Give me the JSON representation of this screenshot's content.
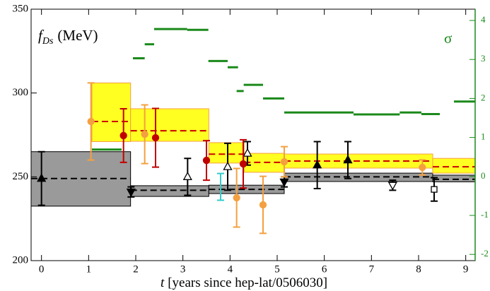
{
  "chart_data": {
    "type": "errorbar",
    "ylabel": {
      "symbol": "f",
      "subscript": "Ds",
      "unit": "(MeV)"
    },
    "y2label": "σ",
    "xlabel": {
      "symbol": "t",
      "text": "[years since hep-lat/0506030]"
    },
    "xlim": [
      -0.22,
      9.2
    ],
    "xticks": [
      0,
      1,
      2,
      3,
      4,
      5,
      6,
      7,
      8,
      9
    ],
    "ylim": [
      200,
      350
    ],
    "yticks": [
      200,
      250,
      300,
      350
    ],
    "y2lim": [
      -2.16,
      4.29
    ],
    "y2ticks": [
      -2,
      -1,
      0,
      1,
      2,
      3,
      4
    ],
    "y2color": "#1a8a1a",
    "bands": [
      {
        "fill": "#9a9a9a",
        "edge": "#000000",
        "line": "#000000",
        "segments": [
          {
            "x": [
              -0.22,
              1.89
            ],
            "value": 249,
            "low": 232.5,
            "high": 265
          },
          {
            "x": [
              1.89,
              3.55
            ],
            "value": 242,
            "low": 238.3,
            "high": 244.7
          },
          {
            "x": [
              3.55,
              5.15
            ],
            "value": 242.5,
            "low": 240,
            "high": 245
          },
          {
            "x": [
              5.15,
              8.3
            ],
            "value": 250,
            "low": 247.2,
            "high": 252.2
          },
          {
            "x": [
              8.3,
              9.2
            ],
            "value": 248.5,
            "low": 247,
            "high": 251
          }
        ]
      },
      {
        "fill": "#ffff22",
        "edge": "#f4a040",
        "line": "#cc0000",
        "segments": [
          {
            "x": [
              1.07,
              1.89
            ],
            "value": 283,
            "low": 271,
            "high": 306
          },
          {
            "x": [
              1.89,
              3.55
            ],
            "value": 277.5,
            "low": 271.2,
            "high": 290.6
          },
          {
            "x": [
              3.55,
              4.3
            ],
            "value": 263.5,
            "low": 258.2,
            "high": 270.4
          },
          {
            "x": [
              4.3,
              5.15
            ],
            "value": 258.6,
            "low": 252.7,
            "high": 264
          },
          {
            "x": [
              5.15,
              8.3
            ],
            "value": 259.4,
            "low": 255.2,
            "high": 263.6
          },
          {
            "x": [
              8.3,
              9.2
            ],
            "value": 256,
            "low": 252.2,
            "high": 261
          }
        ]
      }
    ],
    "sigma": {
      "color": "#1a8a1a",
      "axis": "y2",
      "segments": [
        {
          "x": [
            1.07,
            1.7
          ],
          "value": 0.69
        },
        {
          "x": [
            1.94,
            2.19
          ],
          "value": 3.03
        },
        {
          "x": [
            2.19,
            2.39
          ],
          "value": 3.39
        },
        {
          "x": [
            2.39,
            3.09
          ],
          "value": 3.78
        },
        {
          "x": [
            3.09,
            3.54
          ],
          "value": 3.76
        },
        {
          "x": [
            3.54,
            3.95
          ],
          "value": 2.96
        },
        {
          "x": [
            3.95,
            4.17
          ],
          "value": 2.8
        },
        {
          "x": [
            4.14,
            4.29
          ],
          "value": 2.19
        },
        {
          "x": [
            4.29,
            4.7
          ],
          "value": 2.35
        },
        {
          "x": [
            4.7,
            5.15
          ],
          "value": 2.0
        },
        {
          "x": [
            5.15,
            6.62
          ],
          "value": 1.64
        },
        {
          "x": [
            6.62,
            7.6
          ],
          "value": 1.59
        },
        {
          "x": [
            7.6,
            8.06
          ],
          "value": 1.64
        },
        {
          "x": [
            8.06,
            8.45
          ],
          "value": 1.6
        },
        {
          "x": [
            8.75,
            9.2
          ],
          "value": 1.92
        }
      ]
    },
    "series": [
      {
        "marker": "triangle-up",
        "color": "#000000",
        "fill": "#000000",
        "x": [
          0,
          5.85,
          6.5
        ],
        "values": [
          249,
          257,
          260
        ],
        "errors": [
          16,
          14,
          11
        ]
      },
      {
        "marker": "triangle-down",
        "color": "#000000",
        "fill": "#000000",
        "x": [
          1.9,
          5.15
        ],
        "values": [
          241,
          247
        ],
        "errors": [
          3,
          3
        ]
      },
      {
        "marker": "triangle-up",
        "color": "#000000",
        "fill": "#ffffff",
        "x": [
          3.1,
          3.95,
          4.37
        ],
        "values": [
          250,
          256,
          264
        ],
        "errors": [
          11,
          14,
          7
        ]
      },
      {
        "marker": "triangle-down",
        "color": "#000000",
        "fill": "#ffffff",
        "x": [
          7.45
        ],
        "values": [
          245
        ],
        "errors": [
          3
        ]
      },
      {
        "marker": "square",
        "color": "#000000",
        "fill": "#ffffff",
        "x": [
          8.33
        ],
        "values": [
          242.5
        ],
        "errors": [
          7
        ]
      },
      {
        "marker": "none",
        "color": "#33cccc",
        "fill": "#33cccc",
        "x": [
          3.8
        ],
        "values": [
          244
        ],
        "errors": [
          8
        ]
      },
      {
        "marker": "circle",
        "color": "#c00000",
        "fill": "#c00000",
        "x": [
          1.74,
          2.42,
          3.5,
          4.28
        ],
        "values": [
          274.6,
          273.3,
          259.8,
          257.7
        ],
        "errors": [
          16,
          17.5,
          11.8,
          14.4
        ]
      },
      {
        "marker": "circle",
        "color": "#f4a040",
        "fill": "#f4a040",
        "x": [
          1.05,
          2.19,
          4.14,
          4.7,
          5.15,
          8.08
        ],
        "values": [
          283,
          275.4,
          237.5,
          233.3,
          259,
          255.6
        ],
        "errors": [
          23,
          17.5,
          17.5,
          17,
          9,
          4.5
        ]
      }
    ]
  }
}
